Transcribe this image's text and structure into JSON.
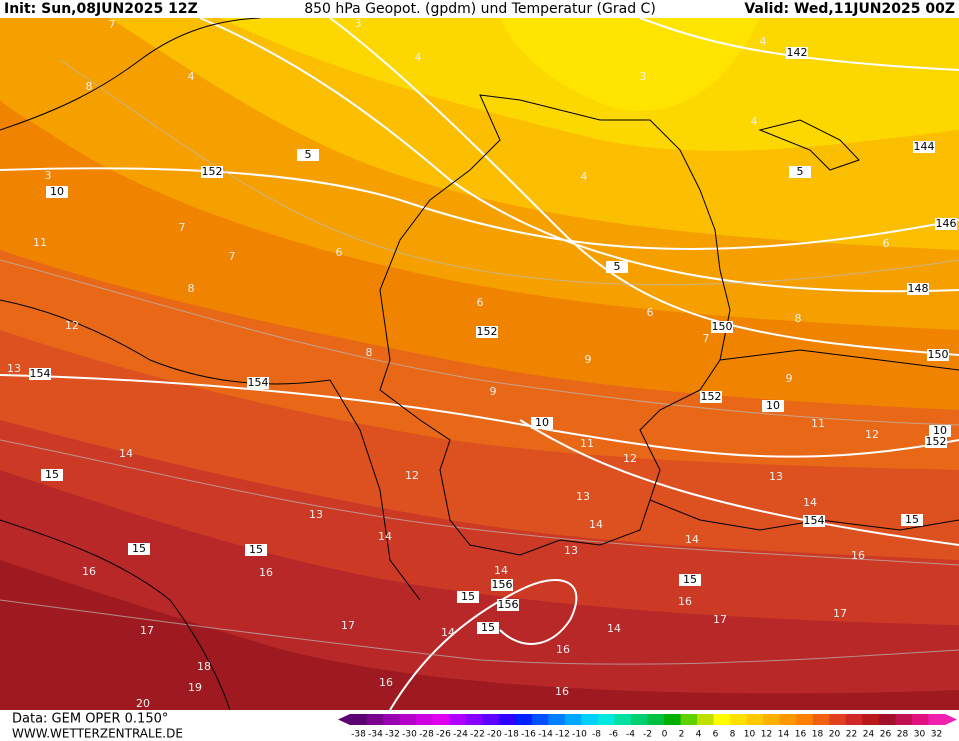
{
  "header": {
    "init": "Init: Sun,08JUN2025 12Z",
    "title": "850 hPa Geopot. (gpdm) und Temperatur (Grad C)",
    "valid": "Valid: Wed,11JUN2025 00Z"
  },
  "footer": {
    "source": "Data: GEM OPER 0.150°",
    "website": "WWW.WETTERZENTRALE.DE"
  },
  "map": {
    "geopotential_labels": [
      142,
      144,
      146,
      148,
      150,
      150,
      152,
      152,
      152,
      152,
      154,
      154,
      154,
      156,
      156
    ],
    "temperature_box_labels": [
      10,
      5,
      5,
      5,
      10,
      10,
      10,
      15,
      15,
      15,
      15,
      15,
      15,
      15
    ],
    "temperature_labels": [
      7,
      3,
      4,
      4,
      3,
      4,
      4,
      8,
      3,
      11,
      7,
      7,
      6,
      8,
      6,
      4,
      6,
      6,
      7,
      8,
      12,
      13,
      8,
      9,
      9,
      9,
      11,
      12,
      11,
      12,
      14,
      12,
      13,
      13,
      14,
      13,
      14,
      14,
      14,
      13,
      16,
      16,
      14,
      16,
      16,
      17,
      17,
      17,
      17,
      14,
      14,
      18,
      19,
      20,
      16,
      16,
      16
    ]
  },
  "colorbar": {
    "labels": [
      -38,
      -34,
      -32,
      -30,
      -28,
      -26,
      -24,
      -22,
      -20,
      -18,
      -16,
      -14,
      -12,
      -10,
      -8,
      -6,
      -4,
      -2,
      0,
      2,
      4,
      6,
      8,
      10,
      12,
      14,
      16,
      18,
      20,
      22,
      24,
      26,
      28,
      30,
      32
    ],
    "colors": [
      "#5a0070",
      "#7a0090",
      "#9a00b0",
      "#b400c8",
      "#cc00e0",
      "#e000f0",
      "#b000ff",
      "#8800ff",
      "#6000ff",
      "#3000ff",
      "#0020ff",
      "#0050ff",
      "#0080ff",
      "#00a8ff",
      "#00d0ff",
      "#00e8e0",
      "#00e0a0",
      "#00d070",
      "#00c040",
      "#00b000",
      "#60d000",
      "#c0e000",
      "#ffff00",
      "#ffe000",
      "#ffc800",
      "#ffb000",
      "#ff9800",
      "#ff8000",
      "#f06010",
      "#e04020",
      "#d02828",
      "#b81818",
      "#a01028",
      "#c01050",
      "#e01080",
      "#f020b0"
    ]
  }
}
